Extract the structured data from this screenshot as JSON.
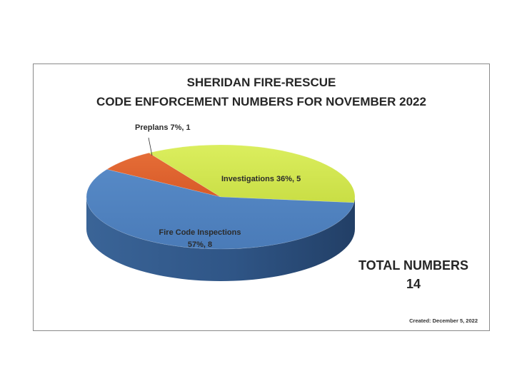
{
  "chart_data": {
    "type": "pie",
    "title": "SHERIDAN FIRE-RESCUE",
    "subtitle": "CODE ENFORCEMENT NUMBERS FOR NOVEMBER 2022",
    "slices": [
      {
        "label": "Preplans",
        "value": 1,
        "percent": "7%",
        "display": "Preplans   7%, 1",
        "color": "#e0642f"
      },
      {
        "label": "Investigations",
        "value": 5,
        "percent": "36%",
        "display": "Investigations  36%, 5",
        "color": "#d2e64c"
      },
      {
        "label": "Fire Code Inspections",
        "value": 8,
        "percent": "57%",
        "display_line1": "Fire Code Inspections",
        "display_line2": "57%, 8",
        "color": "#4f82c0"
      }
    ]
  },
  "total": {
    "label": "TOTAL NUMBERS",
    "value": "14"
  },
  "created": "Created:  December 5, 2022"
}
